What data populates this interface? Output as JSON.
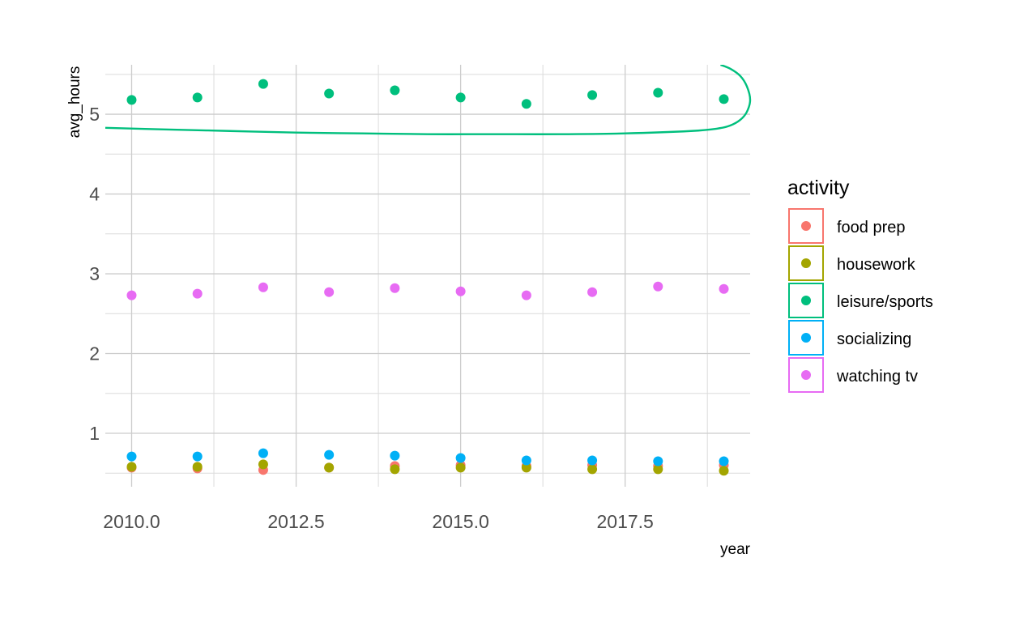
{
  "chart_data": {
    "type": "scatter",
    "title": "",
    "xlabel": "year",
    "ylabel": "avg_hours",
    "xlim": [
      2009.6,
      2019.4
    ],
    "ylim": [
      0.33,
      5.62
    ],
    "x_ticks": [
      2010.0,
      2012.5,
      2015.0,
      2017.5
    ],
    "x_tick_labels": [
      "2010.0",
      "2012.5",
      "2015.0",
      "2017.5"
    ],
    "y_ticks": [
      1,
      2,
      3,
      4,
      5
    ],
    "y_tick_labels": [
      "1",
      "2",
      "3",
      "4",
      "5"
    ],
    "grid": true,
    "legend": {
      "title": "activity",
      "position": "right"
    },
    "x": [
      2010,
      2011,
      2012,
      2013,
      2014,
      2015,
      2016,
      2017,
      2018,
      2019
    ],
    "series": [
      {
        "name": "food prep",
        "color": "#F8766D",
        "values": [
          0.57,
          0.56,
          0.54,
          0.57,
          0.59,
          0.6,
          0.59,
          0.6,
          0.59,
          0.6
        ]
      },
      {
        "name": "housework",
        "color": "#A3A500",
        "values": [
          0.58,
          0.58,
          0.61,
          0.57,
          0.55,
          0.57,
          0.57,
          0.55,
          0.55,
          0.53
        ]
      },
      {
        "name": "leisure/sports",
        "color": "#00BF7D",
        "values": [
          5.18,
          5.21,
          5.38,
          5.26,
          5.3,
          5.21,
          5.13,
          5.24,
          5.27,
          5.19
        ],
        "smooth_line": {
          "x": [
            2009.6,
            2010.5,
            2011.5,
            2012.5,
            2013.5,
            2014.5,
            2015.5,
            2016.5,
            2017.5,
            2018.5,
            2018.9,
            2019.1,
            2019.25,
            2019.35,
            2019.4,
            2019.35,
            2019.25,
            2019.1,
            2018.95
          ],
          "y": [
            4.83,
            4.81,
            4.79,
            4.77,
            4.76,
            4.75,
            4.75,
            4.75,
            4.76,
            4.79,
            4.82,
            4.86,
            4.93,
            5.03,
            5.18,
            5.35,
            5.48,
            5.57,
            5.62
          ]
        }
      },
      {
        "name": "socializing",
        "color": "#00B0F6",
        "values": [
          0.71,
          0.71,
          0.75,
          0.73,
          0.72,
          0.69,
          0.66,
          0.66,
          0.65,
          0.65
        ]
      },
      {
        "name": "watching tv",
        "color": "#E76BF3",
        "values": [
          2.73,
          2.75,
          2.83,
          2.77,
          2.82,
          2.78,
          2.73,
          2.77,
          2.84,
          2.81
        ]
      }
    ]
  }
}
